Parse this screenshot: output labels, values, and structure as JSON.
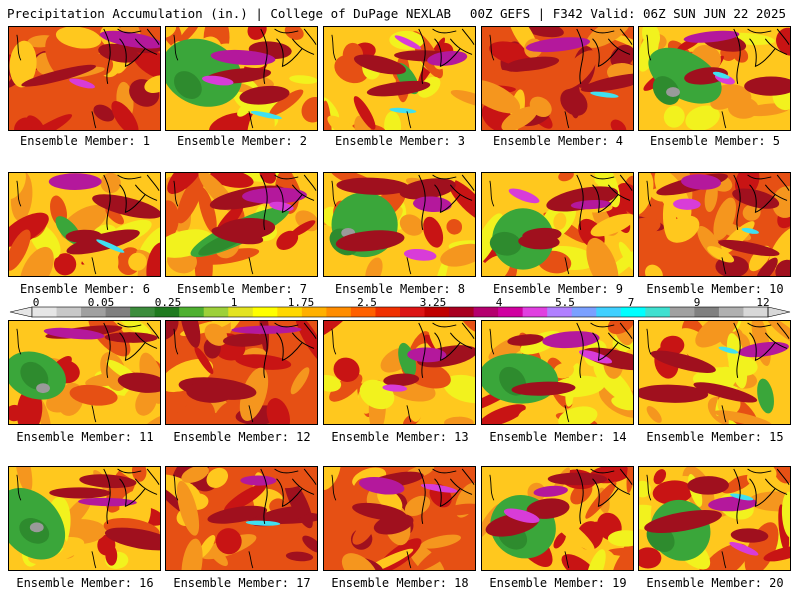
{
  "header": {
    "title": "Precipitation Accumulation (in.) | College of DuPage NEXLAB",
    "run_info": "00Z GEFS | F342 Valid: 06Z SUN JUN 22 2025"
  },
  "members": [
    {
      "label": "Ensemble Member: 1",
      "pattern": "wet",
      "seed": 1
    },
    {
      "label": "Ensemble Member: 2",
      "pattern": "green-west",
      "seed": 2
    },
    {
      "label": "Ensemble Member: 3",
      "pattern": "mixed",
      "seed": 3
    },
    {
      "label": "Ensemble Member: 4",
      "pattern": "wet",
      "seed": 4
    },
    {
      "label": "Ensemble Member: 5",
      "pattern": "green-west",
      "seed": 5
    },
    {
      "label": "Ensemble Member: 6",
      "pattern": "mixed",
      "seed": 6
    },
    {
      "label": "Ensemble Member: 7",
      "pattern": "green-diag",
      "seed": 7
    },
    {
      "label": "Ensemble Member: 8",
      "pattern": "green-west",
      "seed": 8
    },
    {
      "label": "Ensemble Member: 9",
      "pattern": "green-west",
      "seed": 9
    },
    {
      "label": "Ensemble Member: 10",
      "pattern": "wet",
      "seed": 10
    },
    {
      "label": "Ensemble Member: 11",
      "pattern": "green-west",
      "seed": 11
    },
    {
      "label": "Ensemble Member: 12",
      "pattern": "wet",
      "seed": 12
    },
    {
      "label": "Ensemble Member: 13",
      "pattern": "mixed",
      "seed": 13
    },
    {
      "label": "Ensemble Member: 14",
      "pattern": "green-west",
      "seed": 14
    },
    {
      "label": "Ensemble Member: 15",
      "pattern": "mixed",
      "seed": 15
    },
    {
      "label": "Ensemble Member: 16",
      "pattern": "green-west",
      "seed": 16
    },
    {
      "label": "Ensemble Member: 17",
      "pattern": "wet",
      "seed": 17
    },
    {
      "label": "Ensemble Member: 18",
      "pattern": "wet",
      "seed": 18
    },
    {
      "label": "Ensemble Member: 19",
      "pattern": "green-west",
      "seed": 19
    },
    {
      "label": "Ensemble Member: 20",
      "pattern": "green-west",
      "seed": 20
    }
  ],
  "colorbar": {
    "unit": "in.",
    "labels": [
      "0",
      "0.05",
      "0.25",
      "1",
      "1.75",
      "2.5",
      "3.25",
      "4",
      "5.5",
      "7",
      "9",
      "12"
    ],
    "colors": [
      "#e6e6e6",
      "#c8c8c8",
      "#a0a0a0",
      "#808080",
      "#3c8c3c",
      "#1f7a1f",
      "#4fb030",
      "#9dd03a",
      "#e3e320",
      "#ffff00",
      "#ffd800",
      "#ffb000",
      "#ff8c00",
      "#ff6000",
      "#f03000",
      "#dc1414",
      "#c00000",
      "#a80020",
      "#b4006e",
      "#d000a0",
      "#e040e0",
      "#b080ff",
      "#7aa0ff",
      "#40d0ff",
      "#00ffff",
      "#40e0d0",
      "#a0a0a0",
      "#808080",
      "#b0b0b0",
      "#d8d8d8"
    ]
  },
  "scale_colors": {
    "green_dark": "#2e8b2e",
    "green": "#3aa63a",
    "yellow": "#f2f21e",
    "gold": "#ffc81e",
    "orange": "#f5961e",
    "red_orange": "#e65014",
    "red": "#c81414",
    "dark_red": "#a0101e",
    "magenta": "#b4189c",
    "purple": "#d83cd8",
    "cyan": "#40e0f0",
    "gray": "#9a9a9a"
  }
}
